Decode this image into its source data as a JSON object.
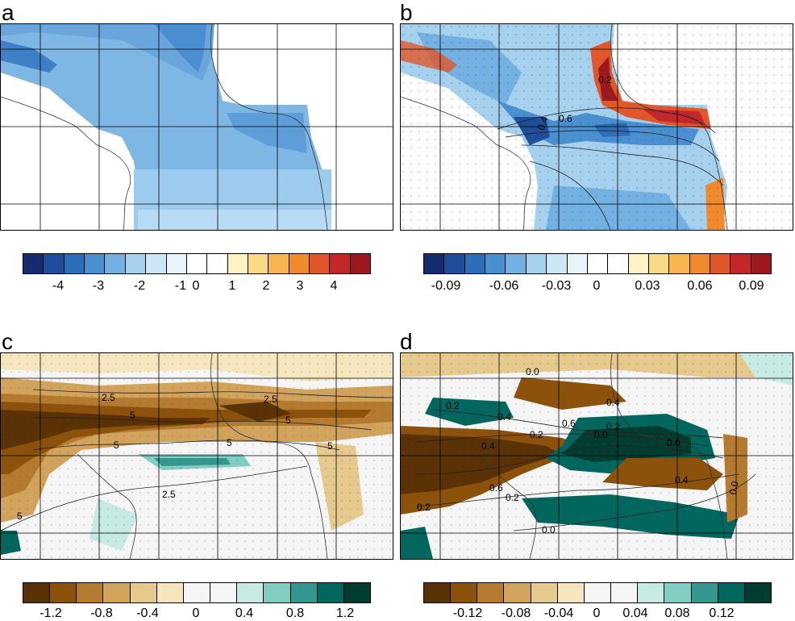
{
  "panels": [
    {
      "letter": "a",
      "colorbar": {
        "colors": [
          "#172c6e",
          "#1e4d9a",
          "#2c6eb8",
          "#4a8fcf",
          "#73b1e2",
          "#a5d0ee",
          "#cde6f6",
          "#e9f5fb",
          "#ffffff",
          "#ffffff",
          "#fff3c6",
          "#fad987",
          "#f8b550",
          "#f08a2e",
          "#e35629",
          "#c4262a",
          "#9a1a1f"
        ],
        "ticks": [
          "-4",
          "-3",
          "-2",
          "-1",
          "0",
          "1",
          "2",
          "3",
          "4"
        ]
      },
      "contour_labels": []
    },
    {
      "letter": "b",
      "colorbar": {
        "colors": [
          "#172c6e",
          "#1e4d9a",
          "#2c6eb8",
          "#4a8fcf",
          "#73b1e2",
          "#a5d0ee",
          "#cde6f6",
          "#e9f5fb",
          "#ffffff",
          "#ffffff",
          "#fff3c6",
          "#fad987",
          "#f8b550",
          "#f08a2e",
          "#e35629",
          "#c4262a",
          "#9a1a1f"
        ],
        "ticks": [
          "-0.09",
          "-0.06",
          "-0.03",
          "0",
          "0.03",
          "0.06",
          "0.09"
        ]
      },
      "contour_labels": [
        "0.2",
        "0.4",
        "0.6"
      ]
    },
    {
      "letter": "c",
      "colorbar": {
        "colors": [
          "#5a3205",
          "#8c510a",
          "#b47a2f",
          "#d2a35c",
          "#e6c98d",
          "#f5e6bd",
          "#f5f5f5",
          "#f5f5f5",
          "#c7eae4",
          "#80cdc1",
          "#35978f",
          "#01665e",
          "#003c30"
        ],
        "ticks": [
          "-1.2",
          "-0.8",
          "-0.4",
          "0",
          "0.4",
          "0.8",
          "1.2"
        ]
      },
      "contour_labels": [
        "2.5",
        "2.5",
        "5",
        "5",
        "5",
        "5",
        "5",
        "5",
        "2.5"
      ]
    },
    {
      "letter": "d",
      "colorbar": {
        "colors": [
          "#5a3205",
          "#8c510a",
          "#b47a2f",
          "#d2a35c",
          "#e6c98d",
          "#f5e6bd",
          "#f5f5f5",
          "#f5f5f5",
          "#c7eae4",
          "#80cdc1",
          "#35978f",
          "#01665e",
          "#003c30"
        ],
        "ticks": [
          "-0.12",
          "-0.08",
          "-0.04",
          "0",
          "0.04",
          "0.08",
          "0.12"
        ]
      },
      "contour_labels": [
        "0.0",
        "0.4",
        "0.2",
        "0.4",
        "0.6",
        "0.2",
        "0.0",
        "0.2",
        "0.4",
        "0.6",
        "0.2",
        "0.0",
        "0.4",
        "0.2",
        "0.0",
        "0.0"
      ]
    }
  ]
}
